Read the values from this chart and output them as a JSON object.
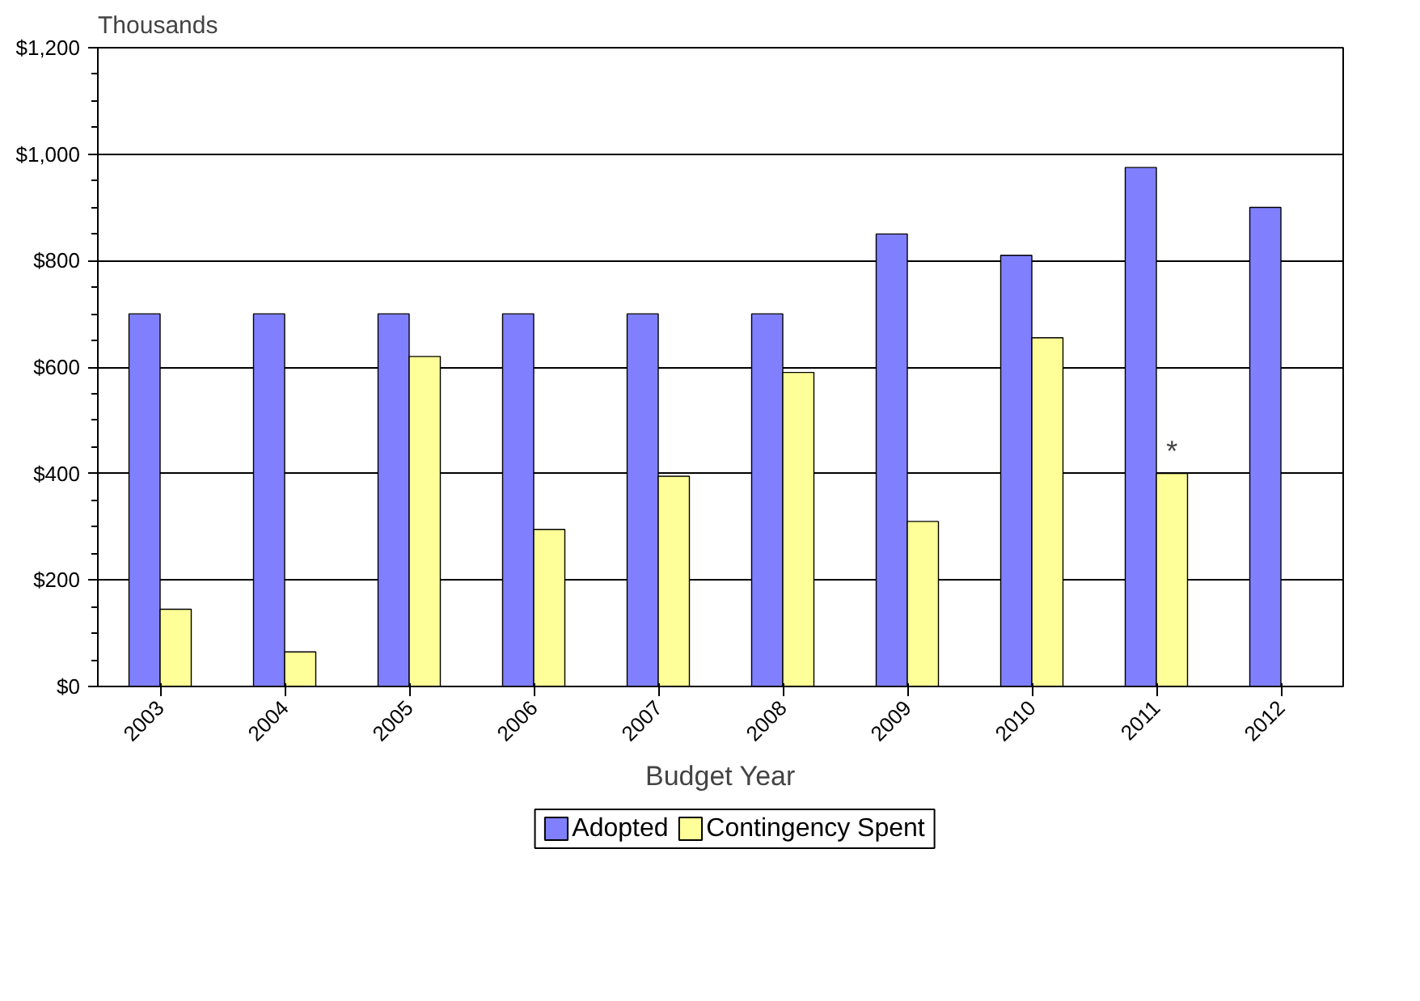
{
  "chart_data": {
    "type": "bar",
    "xlabel": "Budget Year",
    "ylabel": "Thousands",
    "categories": [
      "2003",
      "2004",
      "2005",
      "2006",
      "2007",
      "2008",
      "2009",
      "2010",
      "2011",
      "2012"
    ],
    "series": [
      {
        "name": "Adopted",
        "color": "#8080ff",
        "values": [
          700,
          700,
          700,
          700,
          700,
          700,
          850,
          810,
          975,
          900
        ]
      },
      {
        "name": "Contingency Spent",
        "color": "#ffff99",
        "values": [
          145,
          65,
          620,
          295,
          395,
          590,
          310,
          655,
          400,
          null
        ]
      }
    ],
    "ylim": [
      0,
      1200
    ],
    "yticks": [
      {
        "value": 0,
        "label": "$0"
      },
      {
        "value": 200,
        "label": "$200"
      },
      {
        "value": 400,
        "label": "$400"
      },
      {
        "value": 600,
        "label": "$600"
      },
      {
        "value": 800,
        "label": "$800"
      },
      {
        "value": 1000,
        "label": "$1,000"
      },
      {
        "value": 1200,
        "label": "$1,200"
      }
    ],
    "annotations": [
      {
        "text": "*",
        "x": "2011",
        "y": 400
      }
    ],
    "grid": "y",
    "legend": "bottom"
  }
}
